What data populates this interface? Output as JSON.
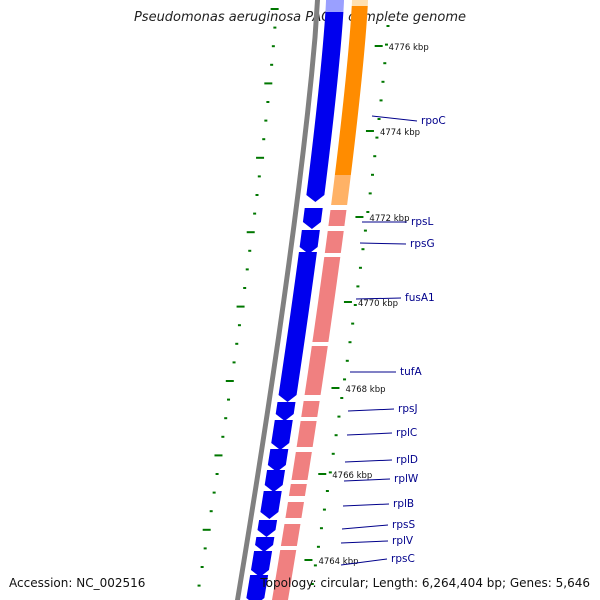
{
  "title": "Pseudomonas aeruginosa PAO1, complete genome",
  "footer": {
    "accession": "Accession: NC_002516",
    "summary": "Topology: circular; Length: 6,264,404 bp; Genes: 5,646"
  },
  "colors": {
    "forward_genes": "#0000ee",
    "forward_genes_light": "#9aa0ff",
    "reverse_genes_orange": "#ff8c00",
    "reverse_genes_pink": "#f08080",
    "backbone": "#808080",
    "ticks": "#007700",
    "labels": "#00008b"
  },
  "ruler": [
    {
      "label": "4776 kbp"
    },
    {
      "label": "4774 kbp"
    },
    {
      "label": "4772 kbp"
    },
    {
      "label": "4770 kbp"
    },
    {
      "label": "4768 kbp"
    },
    {
      "label": "4766 kbp"
    },
    {
      "label": "4764 kbp"
    }
  ],
  "genes": [
    {
      "name": "rpoC"
    },
    {
      "name": "rpsL"
    },
    {
      "name": "rpsG"
    },
    {
      "name": "fusA1"
    },
    {
      "name": "tufA"
    },
    {
      "name": "rpsJ"
    },
    {
      "name": "rplC"
    },
    {
      "name": "rplD"
    },
    {
      "name": "rplW"
    },
    {
      "name": "rplB"
    },
    {
      "name": "rpsS"
    },
    {
      "name": "rplV"
    },
    {
      "name": "rpsC"
    }
  ]
}
